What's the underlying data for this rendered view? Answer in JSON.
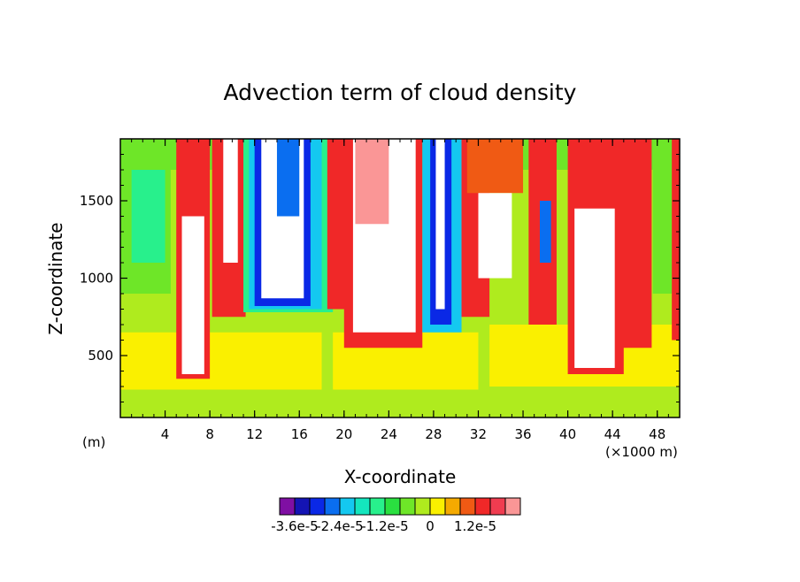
{
  "chart_data": {
    "type": "heatmap",
    "title": "Advection term of cloud density",
    "xlabel": "X-coordinate",
    "ylabel": "Z-coordinate",
    "x_unit_left": "(m)",
    "x_unit_right": "(×1000 m)",
    "xlim": [
      0,
      50
    ],
    "ylim": [
      100,
      1900
    ],
    "x_ticks": [
      "4",
      "8",
      "12",
      "16",
      "20",
      "24",
      "28",
      "32",
      "36",
      "40",
      "44",
      "48"
    ],
    "y_ticks": [
      "500",
      "1000",
      "1500"
    ],
    "colorbar": {
      "labels": [
        "-3.6e-5",
        "-2.4e-5",
        "-1.2e-5",
        "0",
        "1.2e-5"
      ],
      "colors": [
        "#7f0fa3",
        "#1414b4",
        "#0a28e6",
        "#0a6ef0",
        "#14c8f0",
        "#14e6be",
        "#28f08c",
        "#2ae040",
        "#6ee628",
        "#afeb1e",
        "#faf000",
        "#f5aa00",
        "#f05a14",
        "#f02828",
        "#f03c50",
        "#fa9696"
      ]
    },
    "regions": [
      {
        "x": [
          0,
          50
        ],
        "z": [
          100,
          720
        ],
        "level": "#afeb1e"
      },
      {
        "x": [
          0,
          50
        ],
        "z": [
          720,
          1900
        ],
        "level": "#afeb1e"
      },
      {
        "x": [
          0,
          18
        ],
        "z": [
          280,
          650
        ],
        "level": "#faf000"
      },
      {
        "x": [
          19,
          32
        ],
        "z": [
          280,
          650
        ],
        "level": "#faf000"
      },
      {
        "x": [
          33,
          50
        ],
        "z": [
          300,
          700
        ],
        "level": "#faf000"
      },
      {
        "x": [
          0,
          4.5
        ],
        "z": [
          900,
          1900
        ],
        "level": "#6ee628"
      },
      {
        "x": [
          1,
          4
        ],
        "z": [
          1100,
          1800
        ],
        "level": "#28f08c"
      },
      {
        "x": [
          0,
          50
        ],
        "z": [
          1700,
          1900
        ],
        "level": "#6ee628"
      },
      {
        "x": [
          5,
          8
        ],
        "z": [
          350,
          1900
        ],
        "level": "#f02828"
      },
      {
        "x": [
          5.5,
          7.5
        ],
        "z": [
          380,
          1400
        ],
        "level": "#ffffff"
      },
      {
        "x": [
          8.2,
          11.2
        ],
        "z": [
          750,
          1900
        ],
        "level": "#f02828"
      },
      {
        "x": [
          9.2,
          10.5
        ],
        "z": [
          1100,
          1900
        ],
        "level": "#ffffff"
      },
      {
        "x": [
          11,
          19
        ],
        "z": [
          780,
          1900
        ],
        "level": "#28f08c"
      },
      {
        "x": [
          11.5,
          18
        ],
        "z": [
          800,
          1900
        ],
        "level": "#14c8f0"
      },
      {
        "x": [
          12,
          17
        ],
        "z": [
          820,
          1900
        ],
        "level": "#0a28e6"
      },
      {
        "x": [
          12.6,
          16.4
        ],
        "z": [
          870,
          1900
        ],
        "level": "#ffffff"
      },
      {
        "x": [
          14,
          16
        ],
        "z": [
          1400,
          1900
        ],
        "level": "#0a6ef0"
      },
      {
        "x": [
          18.5,
          20.5
        ],
        "z": [
          800,
          1900
        ],
        "level": "#f02828"
      },
      {
        "x": [
          20,
          27
        ],
        "z": [
          550,
          1900
        ],
        "level": "#f02828"
      },
      {
        "x": [
          20.8,
          26.4
        ],
        "z": [
          650,
          1900
        ],
        "level": "#ffffff"
      },
      {
        "x": [
          21,
          24
        ],
        "z": [
          1350,
          1900
        ],
        "level": "#fa9696"
      },
      {
        "x": [
          27,
          30.5
        ],
        "z": [
          650,
          1900
        ],
        "level": "#14c8f0"
      },
      {
        "x": [
          27.7,
          29.6
        ],
        "z": [
          700,
          1900
        ],
        "level": "#0a28e6"
      },
      {
        "x": [
          28.2,
          29
        ],
        "z": [
          800,
          1900
        ],
        "level": "#ffffff"
      },
      {
        "x": [
          30.5,
          33
        ],
        "z": [
          750,
          1900
        ],
        "level": "#f02828"
      },
      {
        "x": [
          31,
          36
        ],
        "z": [
          1550,
          1900
        ],
        "level": "#f05a14"
      },
      {
        "x": [
          32,
          35
        ],
        "z": [
          1000,
          1550
        ],
        "level": "#ffffff"
      },
      {
        "x": [
          36.5,
          39
        ],
        "z": [
          700,
          1900
        ],
        "level": "#f02828"
      },
      {
        "x": [
          37.5,
          38.5
        ],
        "z": [
          1100,
          1500
        ],
        "level": "#0a6ef0"
      },
      {
        "x": [
          40,
          45
        ],
        "z": [
          380,
          1900
        ],
        "level": "#f02828"
      },
      {
        "x": [
          40.6,
          44.2
        ],
        "z": [
          420,
          1450
        ],
        "level": "#ffffff"
      },
      {
        "x": [
          44.5,
          47.5
        ],
        "z": [
          550,
          1900
        ],
        "level": "#f02828"
      },
      {
        "x": [
          47.6,
          49.3
        ],
        "z": [
          900,
          1900
        ],
        "level": "#6ee628"
      },
      {
        "x": [
          49.3,
          50
        ],
        "z": [
          600,
          1900
        ],
        "level": "#f02828"
      }
    ]
  }
}
